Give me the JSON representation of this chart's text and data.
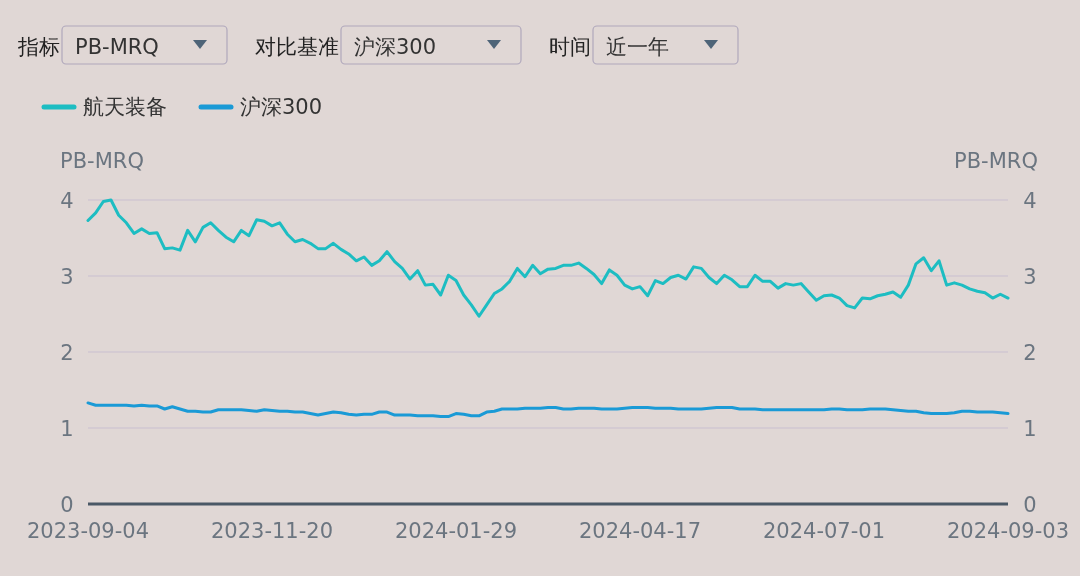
{
  "chart_data": {
    "type": "line",
    "ylabel": "PB-MRQ",
    "y2label": "PB-MRQ",
    "annotations": [
      "指标",
      "PB-MRQ",
      "对比基准",
      "沪深300",
      "时间",
      "近一年"
    ],
    "legend": "top left",
    "grid": "y",
    "marker": "none",
    "line_style": "solid",
    "categories": [
      "2023-09-04",
      null,
      null,
      null,
      null,
      null,
      null,
      null,
      null,
      null,
      null,
      null,
      null,
      null,
      null,
      null,
      null,
      null,
      null,
      null,
      null,
      null,
      null,
      null,
      "2023-11-20",
      null,
      null,
      null,
      null,
      null,
      null,
      null,
      null,
      null,
      null,
      null,
      null,
      null,
      null,
      null,
      null,
      null,
      null,
      null,
      null,
      null,
      null,
      null,
      "2024-01-29",
      null,
      null,
      null,
      null,
      null,
      null,
      null,
      null,
      null,
      null,
      null,
      null,
      null,
      null,
      null,
      null,
      null,
      null,
      null,
      null,
      null,
      null,
      null,
      "2024-04-17",
      null,
      null,
      null,
      null,
      null,
      null,
      null,
      null,
      null,
      null,
      null,
      null,
      null,
      null,
      null,
      null,
      null,
      null,
      null,
      null,
      null,
      null,
      null,
      "2024-07-01",
      null,
      null,
      null,
      null,
      null,
      null,
      null,
      null,
      null,
      null,
      null,
      null,
      null,
      null,
      null,
      null,
      null,
      null,
      null,
      null,
      null,
      null,
      null,
      "2024-09-03"
    ],
    "ylim": [
      0,
      4
    ],
    "yticks": [
      0,
      1,
      2,
      3,
      4
    ],
    "y2lim": [
      0,
      4
    ],
    "y2ticks": [
      0,
      1,
      2,
      3,
      4
    ],
    "series": [
      {
        "name": "航天装备",
        "color": "#1dbdc2",
        "values": [
          3.73,
          3.83,
          3.98,
          4.0,
          3.8,
          3.7,
          3.56,
          3.62,
          3.56,
          3.57,
          3.36,
          3.37,
          3.34,
          3.6,
          3.45,
          3.64,
          3.7,
          3.6,
          3.51,
          3.45,
          3.6,
          3.53,
          3.74,
          3.72,
          3.66,
          3.7,
          3.55,
          3.45,
          3.48,
          3.43,
          3.36,
          3.36,
          3.43,
          3.35,
          3.29,
          3.2,
          3.25,
          3.14,
          3.2,
          3.32,
          3.19,
          3.1,
          2.96,
          3.07,
          2.88,
          2.89,
          2.75,
          3.01,
          2.94,
          2.75,
          2.62,
          2.47,
          2.62,
          2.77,
          2.83,
          2.93,
          3.1,
          2.99,
          3.14,
          3.03,
          3.09,
          3.1,
          3.14,
          3.14,
          3.17,
          3.1,
          3.02,
          2.9,
          3.08,
          3.01,
          2.88,
          2.83,
          2.86,
          2.74,
          2.94,
          2.9,
          2.98,
          3.01,
          2.96,
          3.12,
          3.1,
          2.98,
          2.9,
          3.01,
          2.95,
          2.86,
          2.86,
          3.01,
          2.93,
          2.93,
          2.84,
          2.9,
          2.88,
          2.9,
          2.79,
          2.68,
          2.74,
          2.75,
          2.71,
          2.61,
          2.58,
          2.71,
          2.7,
          2.74,
          2.76,
          2.79,
          2.72,
          2.88,
          3.16,
          3.24,
          3.07,
          3.2,
          2.88,
          2.91,
          2.88,
          2.83,
          2.8,
          2.78,
          2.71,
          2.76,
          2.71
        ]
      },
      {
        "name": "沪深300",
        "color": "#1a9ad6",
        "values": [
          1.33,
          1.3,
          1.3,
          1.3,
          1.3,
          1.3,
          1.29,
          1.3,
          1.29,
          1.29,
          1.25,
          1.28,
          1.25,
          1.22,
          1.22,
          1.21,
          1.21,
          1.24,
          1.24,
          1.24,
          1.24,
          1.23,
          1.22,
          1.24,
          1.23,
          1.22,
          1.22,
          1.21,
          1.21,
          1.19,
          1.17,
          1.19,
          1.21,
          1.2,
          1.18,
          1.17,
          1.18,
          1.18,
          1.21,
          1.21,
          1.17,
          1.17,
          1.17,
          1.16,
          1.16,
          1.16,
          1.15,
          1.15,
          1.19,
          1.18,
          1.16,
          1.16,
          1.21,
          1.22,
          1.25,
          1.25,
          1.25,
          1.26,
          1.26,
          1.26,
          1.27,
          1.27,
          1.25,
          1.25,
          1.26,
          1.26,
          1.26,
          1.25,
          1.25,
          1.25,
          1.26,
          1.27,
          1.27,
          1.27,
          1.26,
          1.26,
          1.26,
          1.25,
          1.25,
          1.25,
          1.25,
          1.26,
          1.27,
          1.27,
          1.27,
          1.25,
          1.25,
          1.25,
          1.24,
          1.24,
          1.24,
          1.24,
          1.24,
          1.24,
          1.24,
          1.24,
          1.24,
          1.25,
          1.25,
          1.24,
          1.24,
          1.24,
          1.25,
          1.25,
          1.25,
          1.24,
          1.23,
          1.22,
          1.22,
          1.2,
          1.19,
          1.19,
          1.19,
          1.2,
          1.22,
          1.22,
          1.21,
          1.21,
          1.21,
          1.2,
          1.19
        ]
      }
    ]
  }
}
